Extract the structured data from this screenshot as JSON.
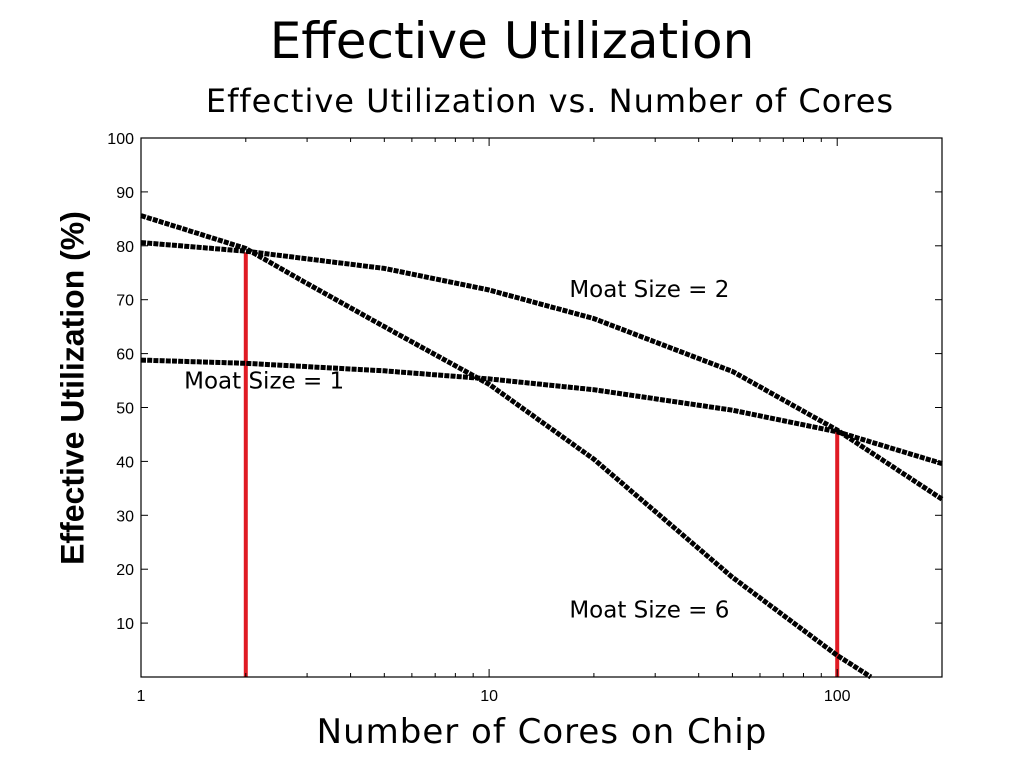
{
  "slide_title": "Effective Utilization",
  "chart_data": {
    "type": "line",
    "title": "Effective Utilization vs. Number of Cores",
    "xlabel": "Number of Cores on Chip",
    "ylabel": "Effective Utilization (%)",
    "xscale": "log",
    "xlim": [
      1,
      200
    ],
    "ylim": [
      0,
      100
    ],
    "grid": false,
    "xticks": [
      1,
      10,
      100
    ],
    "yticks": [
      10,
      20,
      30,
      40,
      50,
      60,
      70,
      80,
      90,
      100
    ],
    "series": [
      {
        "name": "Moat Size = 1",
        "color": "#000000",
        "x": [
          1,
          2,
          5,
          10,
          20,
          50,
          100,
          200
        ],
        "y": [
          58.8,
          58.2,
          56.8,
          55.3,
          53.3,
          49.5,
          45.5,
          39.6
        ]
      },
      {
        "name": "Moat Size = 2",
        "color": "#000000",
        "x": [
          1,
          2,
          5,
          10,
          20,
          50,
          100,
          200
        ],
        "y": [
          80.6,
          79.0,
          75.8,
          71.8,
          66.5,
          56.7,
          45.8,
          33.0
        ]
      },
      {
        "name": "Moat Size = 6",
        "color": "#000000",
        "x": [
          1,
          2,
          3,
          5,
          10,
          20,
          50,
          100,
          125
        ],
        "y": [
          85.6,
          79.5,
          73.0,
          65.0,
          54.3,
          40.4,
          18.5,
          4.0,
          0
        ]
      }
    ],
    "markers": [
      {
        "x": 2,
        "y": 78.8,
        "color": "#e01b24"
      },
      {
        "x": 100,
        "y": 45.6,
        "color": "#e01b24"
      }
    ],
    "annotations": [
      {
        "text": "Moat Size = 2",
        "x": 17,
        "y": 70.5
      },
      {
        "text": "Moat Size = 1",
        "x": 1.33,
        "y": 53.5
      },
      {
        "text": "Moat Size = 6",
        "x": 17,
        "y": 11
      }
    ]
  }
}
